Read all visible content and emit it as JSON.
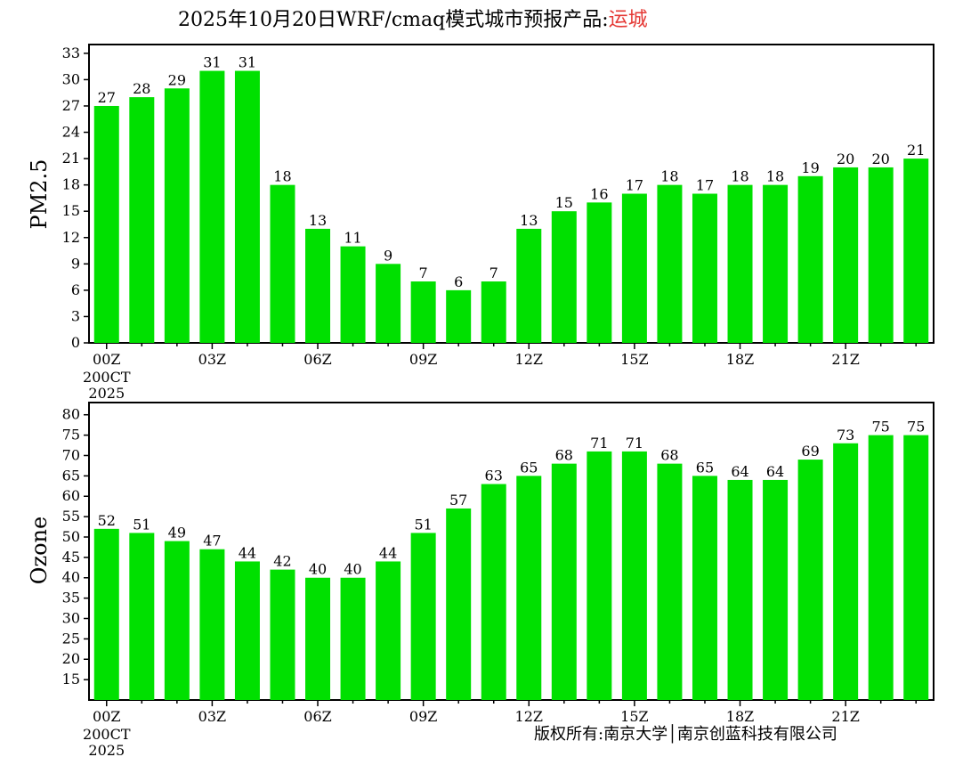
{
  "title": {
    "main": "2025年10月20日WRF/cmaq模式城市预报产品:",
    "city": "运城",
    "city_color": "#e53935"
  },
  "copyright": "版权所有:南京大学│南京创蓝科技有限公司",
  "colors": {
    "bar": "#00e000",
    "axis": "#000000"
  },
  "chart_data": [
    {
      "type": "bar",
      "ylabel": "PM2.5",
      "ylim": [
        0,
        34
      ],
      "yticks": [
        0,
        3,
        6,
        9,
        12,
        15,
        18,
        21,
        24,
        27,
        30,
        33
      ],
      "xtick_labels": [
        "00Z",
        "03Z",
        "06Z",
        "09Z",
        "12Z",
        "15Z",
        "18Z",
        "21Z"
      ],
      "date_label": [
        "200CT",
        "2025"
      ],
      "values": [
        27,
        28,
        29,
        31,
        31,
        18,
        13,
        11,
        9,
        7,
        6,
        7,
        13,
        15,
        16,
        17,
        18,
        17,
        18,
        18,
        19,
        20,
        20,
        21
      ],
      "labels": [
        "27",
        "28",
        "29",
        "31",
        "31",
        "18",
        "13",
        "11",
        "9",
        "7",
        "6",
        "7",
        "13",
        "15",
        "16",
        "17",
        "18",
        "17",
        "18",
        "18",
        "19",
        "20",
        "20",
        "21"
      ]
    },
    {
      "type": "bar",
      "ylabel": "Ozone",
      "ylim": [
        10,
        83
      ],
      "yticks": [
        15,
        20,
        25,
        30,
        35,
        40,
        45,
        50,
        55,
        60,
        65,
        70,
        75,
        80
      ],
      "xtick_labels": [
        "00Z",
        "03Z",
        "06Z",
        "09Z",
        "12Z",
        "15Z",
        "18Z",
        "21Z"
      ],
      "date_label": [
        "200CT",
        "2025"
      ],
      "values": [
        52,
        51,
        49,
        47,
        44,
        42,
        40,
        40,
        44,
        51,
        57,
        63,
        65,
        68,
        71,
        71,
        68,
        65,
        64,
        64,
        69,
        73,
        75,
        75
      ],
      "labels": [
        "52",
        "51",
        "49",
        "47",
        "44",
        "42",
        "40",
        "40",
        "44",
        "51",
        "57",
        "63",
        "65",
        "68",
        "71",
        "71",
        "68",
        "65",
        "64",
        "64",
        "69",
        "73",
        "75",
        "75"
      ]
    }
  ]
}
